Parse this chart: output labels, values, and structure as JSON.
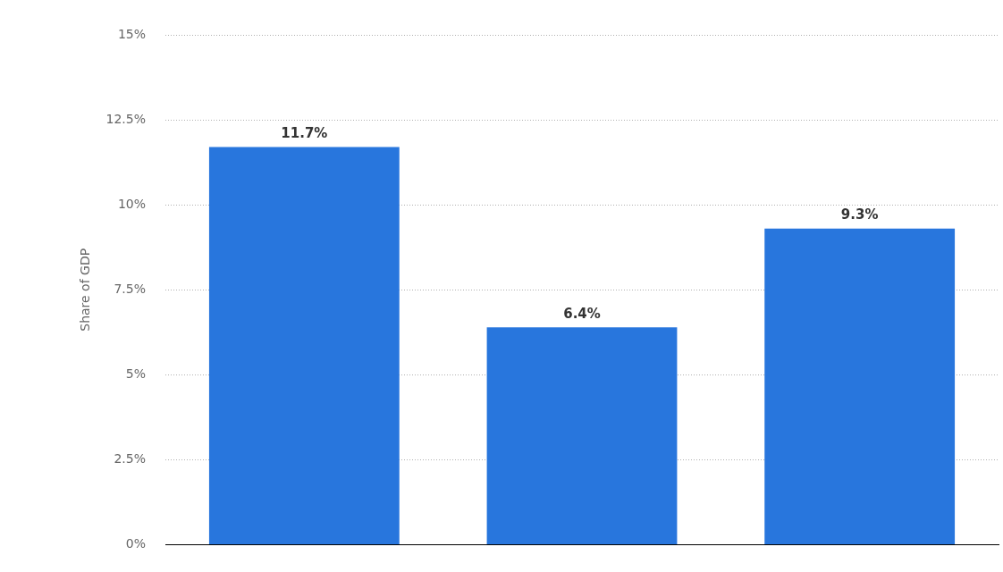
{
  "chart_data": {
    "type": "bar",
    "ylabel": "Share of GDP",
    "categories": [
      null,
      null,
      null
    ],
    "values": [
      11.7,
      6.4,
      9.3
    ],
    "color": "#2876dd",
    "value_labels": [
      "11.7%",
      "6.4%",
      "9.3%"
    ],
    "ylim": [
      0,
      15
    ],
    "yticks": [
      {
        "value": 0,
        "label": "0%"
      },
      {
        "value": 2.5,
        "label": "2.5%"
      },
      {
        "value": 5,
        "label": "5%"
      },
      {
        "value": 7.5,
        "label": "7.5%"
      },
      {
        "value": 10,
        "label": "10%"
      },
      {
        "value": 12.5,
        "label": "12.5%"
      },
      {
        "value": 15,
        "label": "15%"
      }
    ],
    "grid": "y",
    "legend": false
  }
}
